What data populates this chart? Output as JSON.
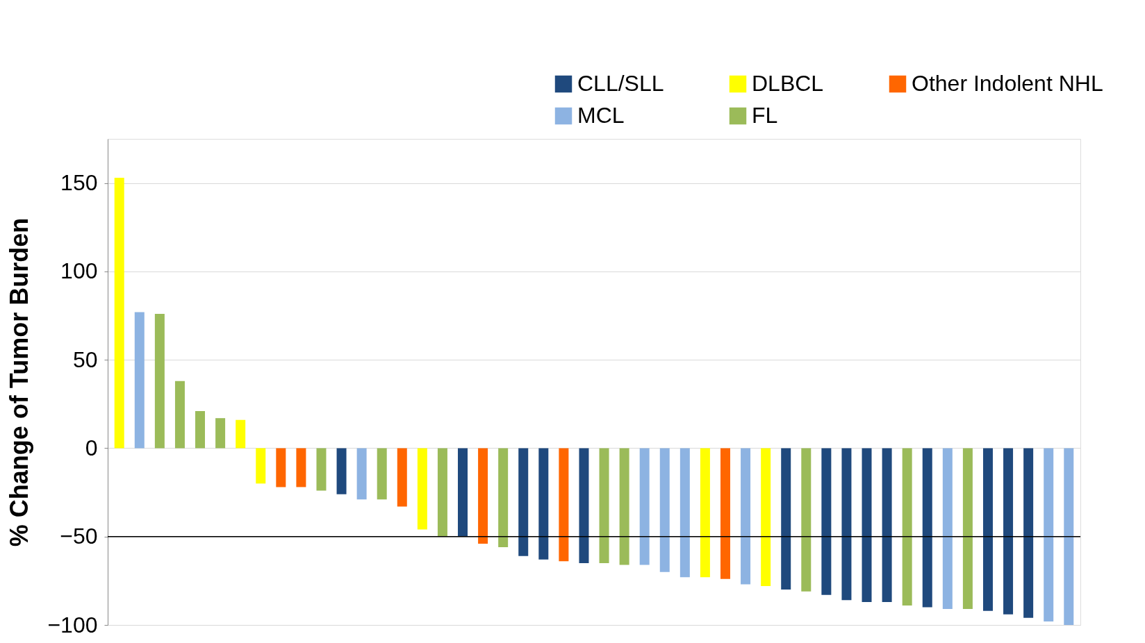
{
  "chart_data": {
    "type": "bar",
    "ylabel": "% Change of Tumor Burden",
    "categories": [
      null,
      null,
      null,
      null,
      null,
      null,
      null,
      null,
      null,
      null,
      null,
      null,
      null,
      null,
      null,
      null,
      null,
      null,
      null,
      null,
      null,
      null,
      null,
      null,
      null,
      null,
      null,
      null,
      null,
      null,
      null,
      null,
      null,
      null,
      null,
      null,
      null,
      null,
      null,
      null,
      null,
      null,
      null,
      null,
      null,
      null,
      null,
      null
    ],
    "series": [
      {
        "name": "CLL/SLL",
        "color": "#1f497d",
        "values": [
          null,
          null,
          null,
          null,
          null,
          null,
          null,
          null,
          null,
          null,
          null,
          -26,
          null,
          null,
          null,
          null,
          null,
          -50,
          null,
          null,
          -61,
          -63,
          null,
          -65,
          null,
          null,
          null,
          null,
          null,
          null,
          null,
          null,
          null,
          -80,
          null,
          -83,
          -86,
          -87,
          -87,
          null,
          -90,
          null,
          null,
          -92,
          -94,
          -96,
          null,
          null
        ]
      },
      {
        "name": "DLBCL",
        "color": "#ffff00",
        "values": [
          153,
          null,
          null,
          null,
          null,
          null,
          16,
          -20,
          null,
          null,
          null,
          null,
          null,
          null,
          null,
          -46,
          null,
          null,
          null,
          null,
          null,
          null,
          null,
          null,
          null,
          null,
          null,
          null,
          null,
          -73,
          null,
          null,
          -78,
          null,
          null,
          null,
          null,
          null,
          null,
          null,
          null,
          null,
          null,
          null,
          null,
          null,
          null,
          null
        ]
      },
      {
        "name": "Other Indolent NHL",
        "color": "#ff6600",
        "values": [
          null,
          null,
          null,
          null,
          null,
          null,
          null,
          null,
          -22,
          -22,
          null,
          null,
          null,
          null,
          -33,
          null,
          null,
          null,
          -54,
          null,
          null,
          null,
          -64,
          null,
          null,
          null,
          null,
          null,
          null,
          null,
          -74,
          null,
          null,
          null,
          null,
          null,
          null,
          null,
          null,
          null,
          null,
          null,
          null,
          null,
          null,
          null,
          null,
          null
        ]
      },
      {
        "name": "MCL",
        "color": "#8db3e2",
        "values": [
          null,
          77,
          null,
          null,
          null,
          null,
          null,
          null,
          null,
          null,
          null,
          null,
          -29,
          null,
          null,
          null,
          null,
          null,
          null,
          null,
          null,
          null,
          null,
          null,
          null,
          null,
          -66,
          -70,
          -73,
          null,
          null,
          -77,
          null,
          null,
          null,
          null,
          null,
          null,
          null,
          null,
          null,
          -91,
          null,
          null,
          null,
          null,
          -98,
          -100
        ]
      },
      {
        "name": "FL",
        "color": "#9bbb59",
        "values": [
          null,
          null,
          76,
          38,
          21,
          17,
          null,
          null,
          null,
          null,
          -24,
          null,
          null,
          -29,
          null,
          null,
          -50,
          null,
          null,
          -56,
          null,
          null,
          null,
          null,
          -65,
          -66,
          null,
          null,
          null,
          null,
          null,
          null,
          null,
          null,
          -81,
          null,
          null,
          null,
          null,
          -89,
          null,
          null,
          -91,
          null,
          null,
          null,
          null,
          null
        ]
      }
    ],
    "ylim": [
      -100,
      175
    ],
    "yticks": [
      -100,
      -50,
      0,
      50,
      100,
      150
    ],
    "grid": "y",
    "legend": "top right",
    "tick_labels": "y",
    "ref_lines": [
      {
        "axis": "y",
        "value": -50,
        "color": "#000000"
      }
    ]
  }
}
